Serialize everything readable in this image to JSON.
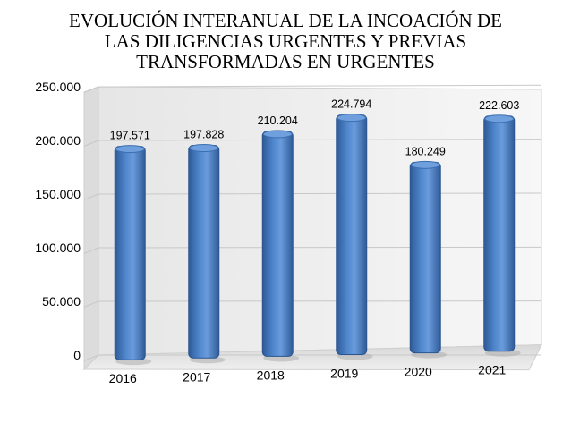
{
  "chart_data": {
    "type": "bar",
    "title_lines": [
      "EVOLUCIÓN INTERANUAL DE LA INCOACIÓN DE",
      "LAS DILIGENCIAS URGENTES Y PREVIAS",
      "TRANSFORMADAS EN URGENTES"
    ],
    "categories": [
      "2016",
      "2017",
      "2018",
      "2019",
      "2020",
      "2021"
    ],
    "values": [
      197571,
      197828,
      210204,
      224794,
      180249,
      222603
    ],
    "data_labels": [
      "197.571",
      "197.828",
      "210.204",
      "224.794",
      "180.249",
      "222.603"
    ],
    "yticks": [
      "0",
      "50.000",
      "100.000",
      "150.000",
      "200.000",
      "250.000"
    ],
    "ytick_values": [
      0,
      50000,
      100000,
      150000,
      200000,
      250000
    ],
    "ylim": [
      0,
      250000
    ],
    "grid": true,
    "legend": "none",
    "bar_color": "#4a7ec2",
    "bar_highlight": "#6f9fdc",
    "bar_shadow": "#2e5a96"
  }
}
